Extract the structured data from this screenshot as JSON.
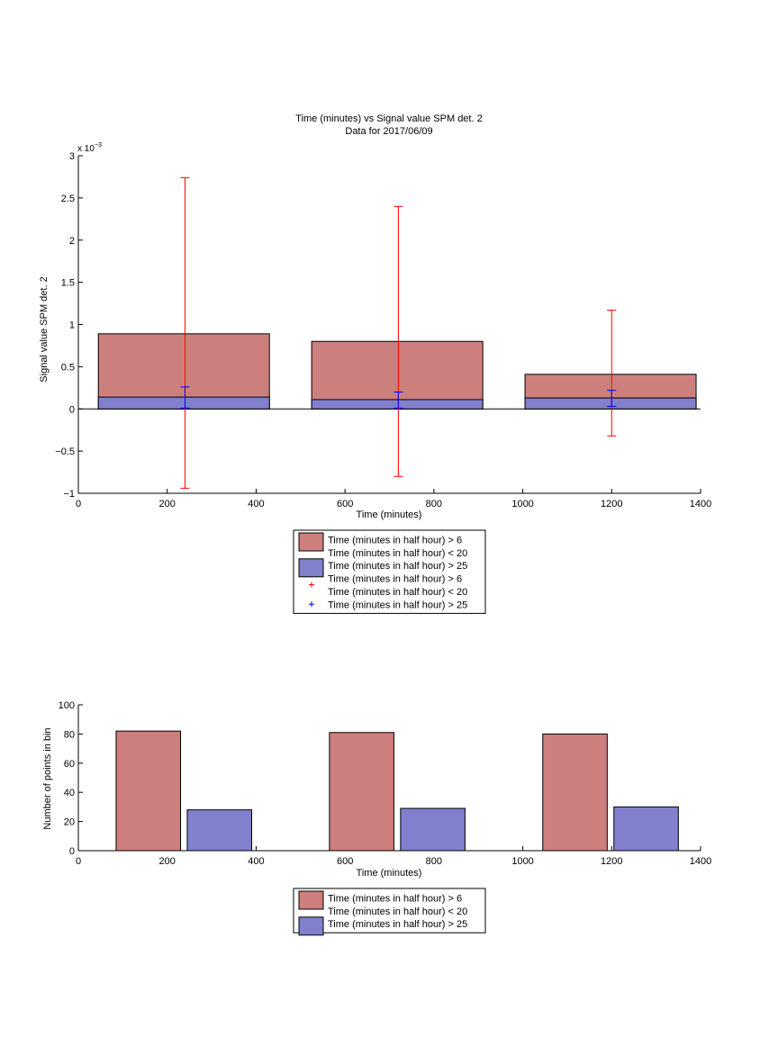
{
  "colors": {
    "bar_a": "#cc7f7c",
    "bar_b": "#8080cc",
    "err_a": "#ff0000",
    "err_b": "#0000ff",
    "axis": "#000000",
    "background": "#ffffff"
  },
  "chart_data": [
    {
      "type": "bar",
      "title": "Time (minutes) vs Signal value SPM det. 2",
      "subtitle": "Data for 2017/06/09",
      "xlabel": "Time (minutes)",
      "ylabel": "Signal value SPM det. 2",
      "exponent_base": "x 10",
      "exponent_power": "−3",
      "xlim": [
        0,
        1400
      ],
      "ylim": [
        -0.001,
        0.003
      ],
      "xticks": [
        0,
        200,
        400,
        600,
        800,
        1000,
        1200,
        1400
      ],
      "xtick_labels": [
        "0",
        "200",
        "400",
        "600",
        "800",
        "1000",
        "1200",
        "1400"
      ],
      "yticks": [
        -0.001,
        -0.0005,
        0,
        0.0005,
        0.001,
        0.0015,
        0.002,
        0.0025,
        0.003
      ],
      "ytick_labels": [
        "−1",
        "−0.5",
        "0",
        "0.5",
        "1",
        "1.5",
        "2",
        "2.5",
        "3"
      ],
      "grid": false,
      "legend": "bottom-outside",
      "bar_ranges": [
        [
          45,
          430
        ],
        [
          525,
          910
        ],
        [
          1005,
          1390
        ]
      ],
      "x": [
        240,
        720,
        1200
      ],
      "series": [
        {
          "name": "Time (minutes in half hour) > 6",
          "values": [
            0.00089,
            0.0008,
            0.00041
          ],
          "error_low": [
            -0.00094,
            -0.0008,
            -0.00032
          ],
          "error_high": [
            0.00274,
            0.0024,
            0.00117
          ]
        },
        {
          "name": "Time (minutes in half hour) > 25",
          "values": [
            0.00014,
            0.00011,
            0.00013
          ],
          "error_low": [
            1e-05,
            1e-05,
            3e-05
          ],
          "error_high": [
            0.00026,
            0.0002,
            0.00022
          ]
        }
      ],
      "legend_entries": [
        {
          "kind": "patch",
          "color": "bar_a",
          "lines": [
            "Time (minutes in half hour) > 6",
            "Time (minutes in half hour) < 20"
          ]
        },
        {
          "kind": "patch",
          "color": "bar_b",
          "lines": [
            "Time (minutes in half hour) > 25"
          ]
        },
        {
          "kind": "marker",
          "color": "err_a",
          "lines": [
            "Time (minutes in half hour) > 6",
            "Time (minutes in half hour) < 20"
          ]
        },
        {
          "kind": "marker",
          "color": "err_b",
          "lines": [
            "Time (minutes in half hour) > 25"
          ]
        }
      ]
    },
    {
      "type": "bar",
      "xlabel": "Time (minutes)",
      "ylabel": "Number of points in bin",
      "xlim": [
        0,
        1400
      ],
      "ylim": [
        0,
        100
      ],
      "xticks": [
        0,
        200,
        400,
        600,
        800,
        1000,
        1200,
        1400
      ],
      "xtick_labels": [
        "0",
        "200",
        "400",
        "600",
        "800",
        "1000",
        "1200",
        "1400"
      ],
      "yticks": [
        0,
        20,
        40,
        60,
        80,
        100
      ],
      "ytick_labels": [
        "0",
        "20",
        "40",
        "60",
        "80",
        "100"
      ],
      "grid": false,
      "legend": "bottom-outside",
      "series": [
        {
          "name": "Time (minutes in half hour) > 6",
          "bar_ranges": [
            [
              85,
              230
            ],
            [
              565,
              710
            ],
            [
              1045,
              1190
            ]
          ],
          "values": [
            82,
            81,
            80
          ]
        },
        {
          "name": "Time (minutes in half hour) > 25",
          "bar_ranges": [
            [
              245,
              390
            ],
            [
              725,
              870
            ],
            [
              1205,
              1350
            ]
          ],
          "values": [
            28,
            29,
            30
          ]
        }
      ],
      "legend_entries": [
        {
          "kind": "patch",
          "color": "bar_a",
          "lines": [
            "Time (minutes in half hour) > 6",
            "Time (minutes in half hour) < 20"
          ]
        },
        {
          "kind": "patch",
          "color": "bar_b",
          "lines": [
            "Time (minutes in half hour) > 25"
          ]
        }
      ]
    }
  ]
}
